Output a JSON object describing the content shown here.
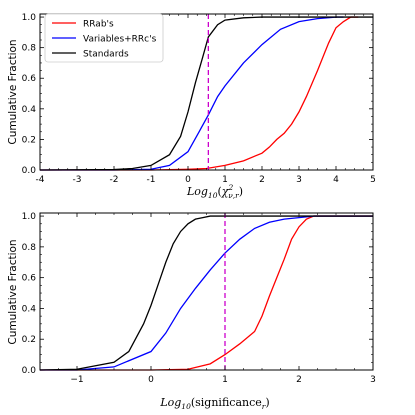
{
  "colors": {
    "rrab": "#ff0000",
    "variables_rrc": "#0000ff",
    "standards": "#000000",
    "threshold": "#cc00cc"
  },
  "chart_data": [
    {
      "type": "line",
      "ylabel": "Cumulative Fraction",
      "xlabel": {
        "prefix": "Log",
        "sub": "10",
        "open": "(",
        "chi": "χ",
        "sup": "2",
        "subscript": "ν,r",
        "close": ")"
      },
      "xlim": [
        -4,
        5
      ],
      "ylim": [
        0,
        1.02
      ],
      "xticks": [
        "-4",
        "-3",
        "-2",
        "-1",
        "0",
        "1",
        "2",
        "3",
        "4",
        "5"
      ],
      "yticks": [
        "0.0",
        "0.2",
        "0.4",
        "0.6",
        "0.8",
        "1.0"
      ],
      "legend": "top-left",
      "vline": 0.55,
      "series": [
        {
          "name": "RRab's",
          "color_key": "rrab",
          "x": [
            -4,
            -2.0,
            -1.0,
            0.0,
            0.5,
            1.0,
            1.5,
            2.0,
            2.2,
            2.4,
            2.6,
            2.8,
            3.0,
            3.2,
            3.5,
            3.8,
            4.0,
            4.2,
            4.4,
            4.6
          ],
          "y": [
            0,
            0.0,
            0.0,
            0.005,
            0.01,
            0.03,
            0.06,
            0.11,
            0.15,
            0.2,
            0.24,
            0.3,
            0.38,
            0.48,
            0.65,
            0.83,
            0.93,
            0.97,
            1.0,
            1.0
          ]
        },
        {
          "name": "Variables+RRc's",
          "color_key": "variables_rrc",
          "x": [
            -4,
            -2.0,
            -1.0,
            -0.5,
            0.0,
            0.3,
            0.55,
            0.8,
            1.0,
            1.5,
            2.0,
            2.5,
            3.0,
            3.5,
            4.0,
            4.2
          ],
          "y": [
            0,
            0.0,
            0.005,
            0.03,
            0.12,
            0.25,
            0.36,
            0.48,
            0.55,
            0.7,
            0.82,
            0.92,
            0.97,
            0.99,
            1.0,
            1.0
          ]
        },
        {
          "name": "Standards",
          "color_key": "standards",
          "x": [
            -4,
            -2.0,
            -1.5,
            -1.0,
            -0.5,
            -0.2,
            0.0,
            0.2,
            0.4,
            0.55,
            0.8,
            1.0,
            1.5,
            2.0,
            2.5,
            5.0
          ],
          "y": [
            0,
            0.003,
            0.01,
            0.03,
            0.1,
            0.22,
            0.38,
            0.57,
            0.74,
            0.87,
            0.95,
            0.98,
            0.995,
            1.0,
            1.0,
            1.0
          ]
        }
      ]
    },
    {
      "type": "line",
      "ylabel": "Cumulative Fraction",
      "xlabel": {
        "prefix": "Log",
        "sub": "10",
        "open": "(",
        "word": "significance",
        "subscript": "r",
        "close": ")"
      },
      "xlim": [
        -1.5,
        3
      ],
      "ylim": [
        0,
        1.02
      ],
      "xticks": [
        "−1",
        "0",
        "1",
        "2",
        "3"
      ],
      "yticks": [
        "0.0",
        "0.2",
        "0.4",
        "0.6",
        "0.8",
        "1.0"
      ],
      "vline": 1.0,
      "series": [
        {
          "name": "RRab's",
          "color_key": "rrab",
          "x": [
            -1.5,
            0.0,
            0.5,
            0.8,
            1.0,
            1.2,
            1.4,
            1.5,
            1.6,
            1.7,
            1.8,
            1.9,
            2.0,
            2.1,
            2.2,
            2.3,
            3.0
          ],
          "y": [
            0,
            0.0,
            0.005,
            0.04,
            0.1,
            0.17,
            0.25,
            0.35,
            0.48,
            0.6,
            0.72,
            0.85,
            0.93,
            0.98,
            1.0,
            1.0,
            1.0
          ]
        },
        {
          "name": "Variables+RRc's",
          "color_key": "variables_rrc",
          "x": [
            -1.5,
            -1.0,
            -0.5,
            0.0,
            0.2,
            0.4,
            0.6,
            0.8,
            1.0,
            1.2,
            1.4,
            1.6,
            1.8,
            2.0,
            2.2,
            3.0
          ],
          "y": [
            0,
            0.0,
            0.02,
            0.12,
            0.24,
            0.4,
            0.53,
            0.65,
            0.76,
            0.85,
            0.92,
            0.96,
            0.98,
            0.99,
            1.0,
            1.0
          ]
        },
        {
          "name": "Standards",
          "color_key": "standards",
          "x": [
            -1.5,
            -1.0,
            -0.5,
            -0.3,
            -0.1,
            0.0,
            0.1,
            0.2,
            0.3,
            0.4,
            0.5,
            0.6,
            0.7,
            0.8,
            1.0,
            3.0
          ],
          "y": [
            0,
            0.005,
            0.05,
            0.12,
            0.3,
            0.42,
            0.56,
            0.7,
            0.82,
            0.9,
            0.95,
            0.98,
            0.99,
            1.0,
            1.0,
            1.0
          ]
        }
      ]
    }
  ]
}
